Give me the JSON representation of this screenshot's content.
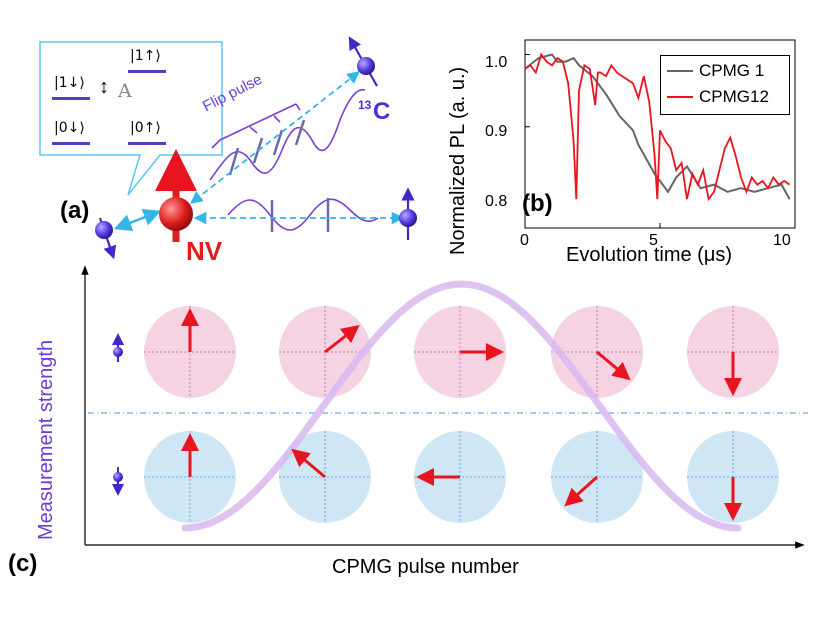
{
  "panels": {
    "a": "(a)",
    "b": "(b)",
    "c": "(c)"
  },
  "panel_a": {
    "kets": [
      "|1↓⟩",
      "|1↑⟩",
      "|0↓⟩",
      "|0↑⟩"
    ],
    "coupling_symbol": "↕",
    "coupling_label": "A",
    "flip_pulse_label": "Flip pulse",
    "carbon_mass": "13",
    "carbon_symbol": "C",
    "nv_label": "NV",
    "colors": {
      "nv": "#e01e1e",
      "spin": "#4a2fd6",
      "dashed": "#33b5e5",
      "wave": "#7a3fd6"
    }
  },
  "chart_data": {
    "type": "line",
    "xlabel": "Evolution time (μs)",
    "ylabel": "Normalized PL (a. u.)",
    "xlim": [
      0,
      10
    ],
    "ylim": [
      0.76,
      1.02
    ],
    "xticks": [
      "0",
      "5",
      "10"
    ],
    "yticks": [
      "0.8",
      "0.9",
      "1.0"
    ],
    "legend_position": "top-right",
    "series": [
      {
        "name": "CPMG 1",
        "color": "#666666",
        "x": [
          0,
          0.5,
          1.0,
          1.2,
          1.5,
          1.8,
          2.0,
          2.5,
          3.0,
          3.5,
          4.0,
          4.2,
          4.5,
          4.8,
          5.0,
          5.3,
          5.6,
          6.0,
          6.5,
          7.0,
          7.5,
          8.0,
          8.5,
          9.0,
          9.5,
          9.8
        ],
        "y": [
          0.98,
          0.995,
          1.0,
          0.99,
          0.99,
          0.995,
          0.985,
          0.97,
          0.945,
          0.915,
          0.895,
          0.875,
          0.855,
          0.835,
          0.825,
          0.81,
          0.83,
          0.845,
          0.815,
          0.82,
          0.81,
          0.815,
          0.81,
          0.815,
          0.82,
          0.8
        ]
      },
      {
        "name": "CPMG12",
        "color": "#e8141e",
        "x": [
          0,
          0.2,
          0.4,
          0.6,
          0.8,
          1.0,
          1.2,
          1.4,
          1.6,
          1.8,
          1.9,
          2.0,
          2.2,
          2.4,
          2.6,
          2.7,
          2.8,
          3.0,
          3.2,
          3.4,
          3.6,
          3.8,
          4.0,
          4.2,
          4.4,
          4.6,
          4.8,
          4.9,
          5.0,
          5.2,
          5.4,
          5.6,
          5.8,
          6.0,
          6.2,
          6.4,
          6.6,
          6.8,
          7.0,
          7.2,
          7.4,
          7.6,
          7.8,
          8.0,
          8.2,
          8.4,
          8.6,
          8.8,
          9.0,
          9.2,
          9.4,
          9.6,
          9.8
        ],
        "y": [
          0.98,
          0.985,
          0.975,
          1.0,
          0.99,
          0.985,
          0.995,
          0.99,
          0.96,
          0.88,
          0.8,
          0.95,
          0.985,
          0.98,
          0.93,
          0.975,
          0.975,
          0.97,
          0.985,
          0.975,
          0.97,
          0.965,
          0.96,
          0.94,
          0.97,
          0.935,
          0.86,
          0.8,
          0.895,
          0.88,
          0.87,
          0.84,
          0.85,
          0.8,
          0.835,
          0.82,
          0.84,
          0.8,
          0.81,
          0.84,
          0.87,
          0.885,
          0.86,
          0.83,
          0.81,
          0.83,
          0.82,
          0.825,
          0.815,
          0.83,
          0.82,
          0.825,
          0.82
        ]
      }
    ]
  },
  "panel_c": {
    "xlabel": "CPMG pulse number",
    "ylabel": "Measurement strength",
    "colors": {
      "upper_row": "#f5d3e3",
      "lower_row": "#cfe6f5",
      "arrow": "#e8141e",
      "curve": "#d7b8f0",
      "divider": "#4a90e2"
    },
    "upper_row_arrow_angles_deg": [
      90,
      38,
      0,
      -40,
      -90
    ],
    "lower_row_arrow_angles_deg": [
      90,
      140,
      180,
      222,
      270
    ]
  }
}
